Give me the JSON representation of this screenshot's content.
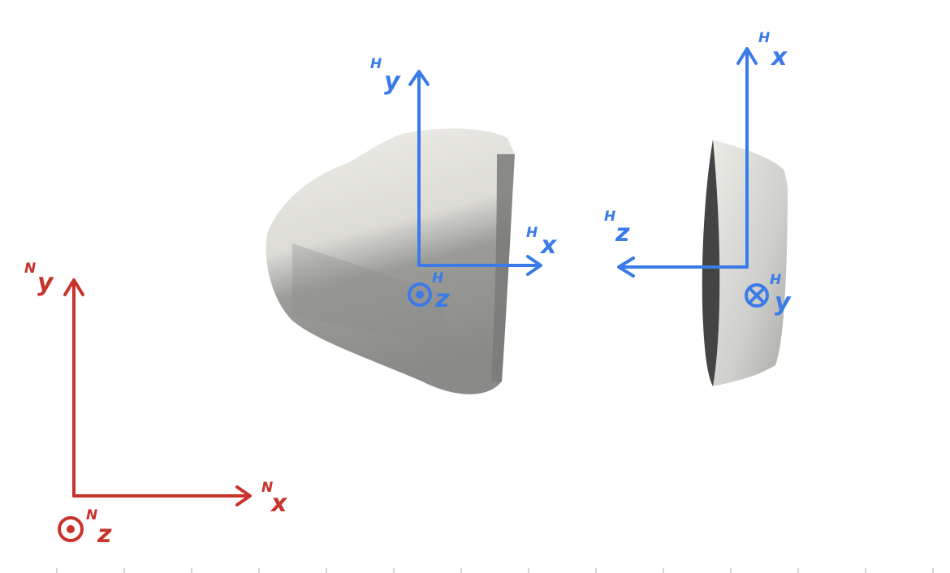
{
  "colors": {
    "sensor_frame": "#3b7be8",
    "reference_frame": "#c8332b",
    "shape_light": "#ecebe6",
    "shape_mid": "#b7b7b3",
    "shape_dark": "#444444",
    "tick": "#d6d6d6"
  },
  "frames": {
    "front_view": {
      "y_axis": {
        "sup": "H",
        "base": "y"
      },
      "x_axis": {
        "sup": "H",
        "base": "x"
      },
      "z_axis": {
        "sup": "H",
        "base": "z",
        "symbol": "out-of-page-dot"
      }
    },
    "side_view": {
      "x_axis": {
        "sup": "H",
        "base": "x"
      },
      "z_axis": {
        "sup": "H",
        "base": "z"
      },
      "y_axis": {
        "sup": "H",
        "base": "y",
        "symbol": "into-page-cross"
      }
    },
    "reference": {
      "y_axis": {
        "sup": "N",
        "base": "y"
      },
      "x_axis": {
        "sup": "N",
        "base": "x"
      },
      "z_axis": {
        "sup": "N",
        "base": "z",
        "symbol": "out-of-page-dot"
      }
    }
  }
}
